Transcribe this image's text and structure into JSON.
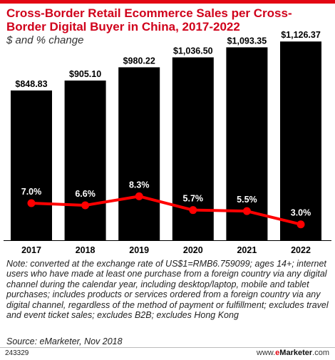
{
  "chart_data": {
    "type": "bar",
    "title": "Cross-Border Retail Ecommerce Sales per Cross-Border Digital Buyer in China, 2017-2022",
    "subtitle": "$ and % change",
    "categories": [
      "2017",
      "2018",
      "2019",
      "2020",
      "2021",
      "2022"
    ],
    "series": [
      {
        "values": [
          848.83,
          905.1,
          980.22,
          1036.5,
          1093.35,
          1126.37
        ],
        "labels": [
          "$848.83",
          "$905.10",
          "$980.22",
          "$1,036.50",
          "$1,093.35",
          "$1,126.37"
        ],
        "color": "#000000"
      },
      {
        "values": [
          7.0,
          6.6,
          8.3,
          5.7,
          5.5,
          3.0
        ],
        "labels": [
          "7.0%",
          "6.6%",
          "8.3%",
          "5.7%",
          "5.5%",
          "3.0%"
        ],
        "color": "#ff0000"
      }
    ],
    "bar_ylim": [
      0,
      1200
    ],
    "pct_ylim": [
      0,
      40
    ],
    "legend": "none",
    "grid": false
  },
  "header": {
    "title": "Cross-Border Retail Ecommerce Sales per Cross-Border Digital Buyer in China, 2017-2022",
    "subtitle": "$ and % change"
  },
  "footer": {
    "note": "Note: converted at the exchange rate of US$1=RMB6.759099; ages 14+; internet users who have made at least one purchase from a foreign country via any digital channel during the calendar year, including desktop/laptop, mobile and tablet purchases; includes products or services ordered from a foreign country via any digital channel, regardless of the method of payment or fulfillment; excludes travel and event ticket sales; excludes B2B; excludes Hong Kong",
    "source": "Source: eMarketer, Nov 2018",
    "chart_id": "243329",
    "brand_prefix": "www.",
    "brand_e": "e",
    "brand_marketer": "Marketer",
    "brand_suffix": ".com"
  },
  "colors": {
    "accent": "#d0021b",
    "bar": "#000000",
    "line": "#ff0000"
  }
}
